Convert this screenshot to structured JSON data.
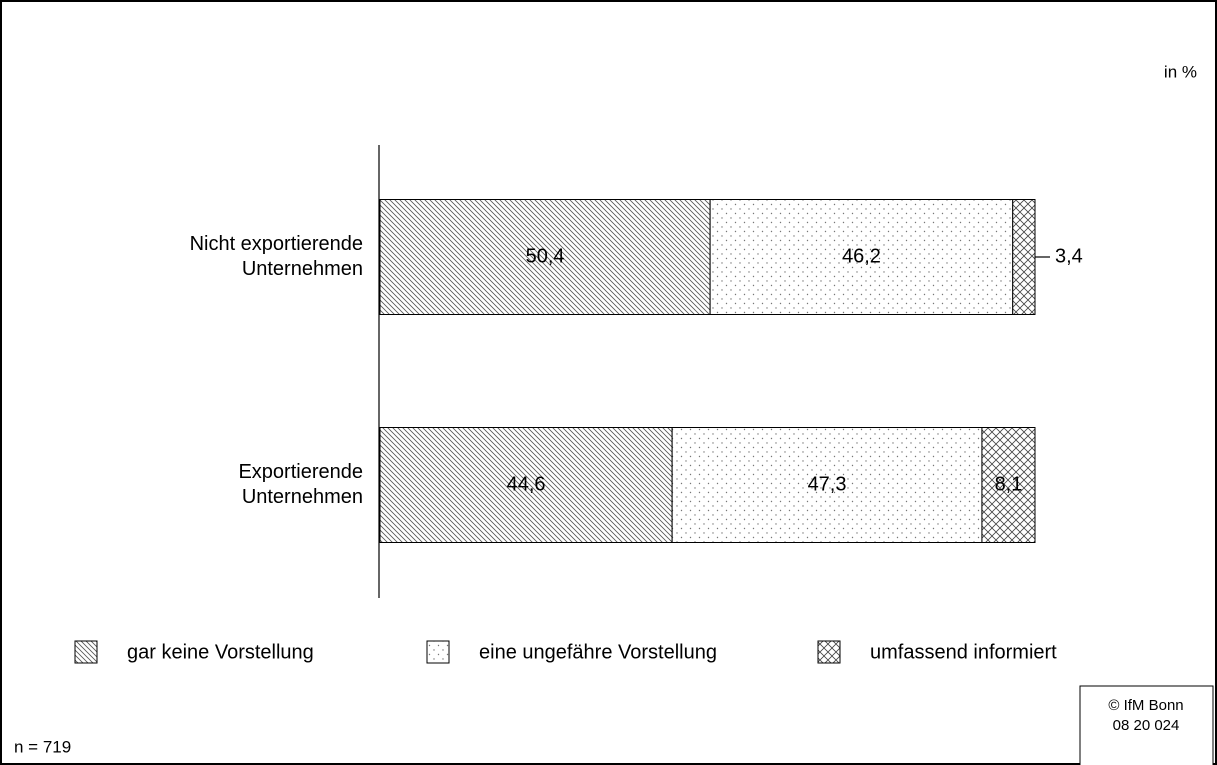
{
  "chart_data": {
    "type": "stacked_bar_horizontal",
    "unit_label": "in %",
    "categories": [
      "Nicht exportierende Unternehmen",
      "Exportierende Unternehmen"
    ],
    "series": [
      {
        "name": "gar keine Vorstellung",
        "pattern": "hatch",
        "values": [
          50.4,
          44.6
        ],
        "value_labels": [
          "50,4",
          "44,6"
        ]
      },
      {
        "name": "eine ungefähre Vorstellung",
        "pattern": "dots",
        "values": [
          46.2,
          47.3
        ],
        "value_labels": [
          "46,2",
          "47,3"
        ]
      },
      {
        "name": "umfassend informiert",
        "pattern": "crosshatch",
        "values": [
          3.4,
          8.1
        ],
        "value_labels": [
          "3,4",
          "8,1"
        ]
      }
    ],
    "xlim": [
      0,
      100
    ],
    "note": "n = 719",
    "source": [
      "© IfM Bonn",
      "08 20 024"
    ]
  }
}
